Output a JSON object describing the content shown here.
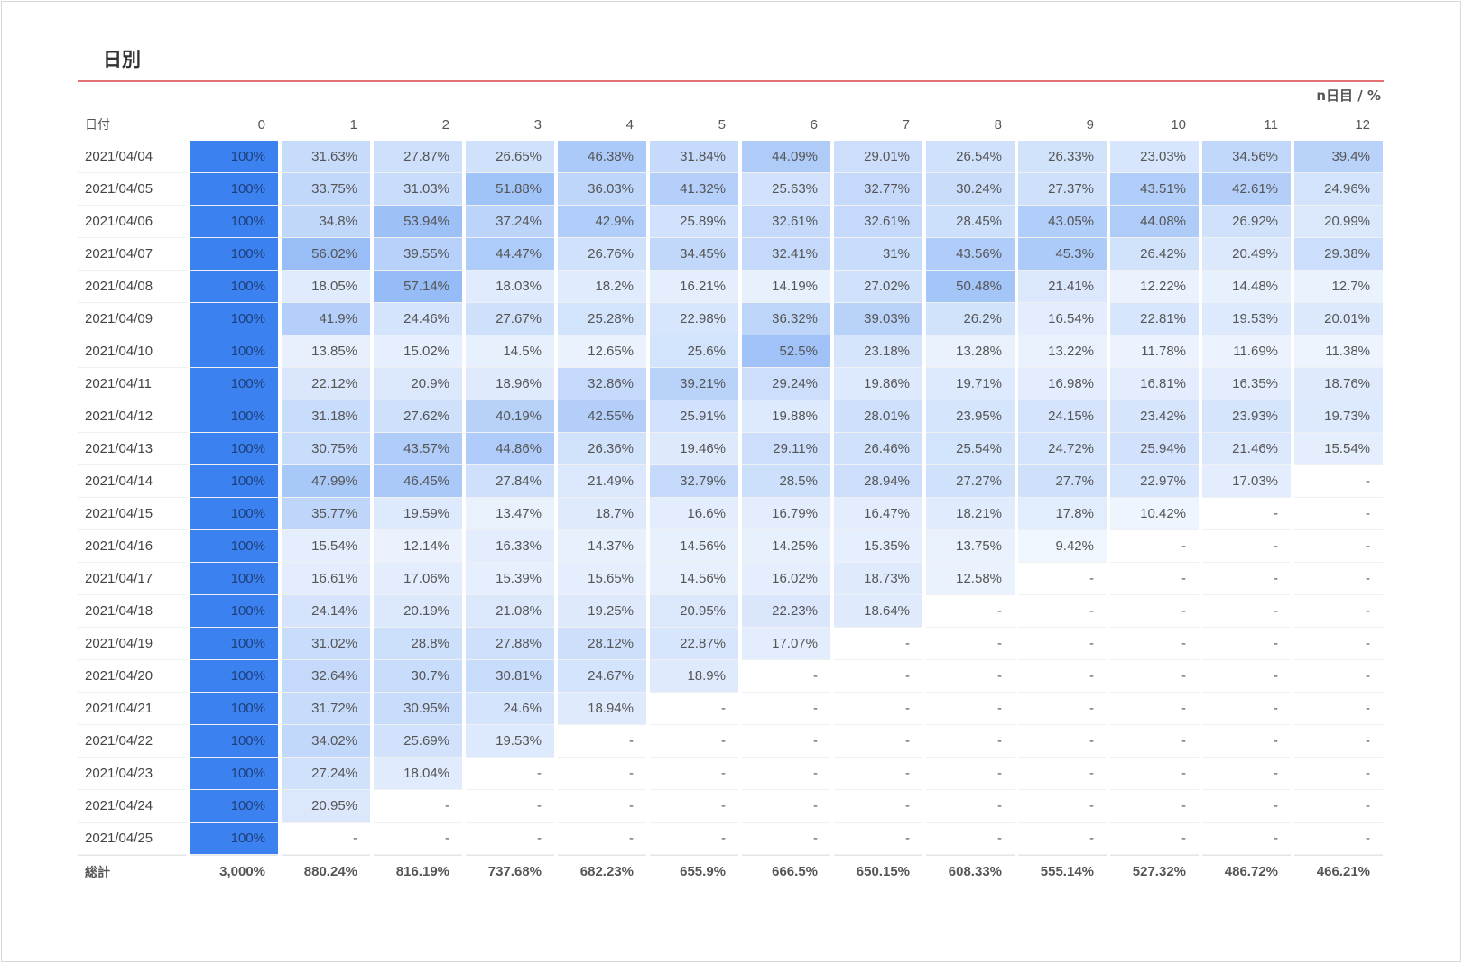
{
  "title": "日別",
  "unit_label": "n日目 / %",
  "colors": {
    "accent_rule": "#e57373",
    "day0_fill": "#3b82f0",
    "heat_base": "#3b82f0"
  },
  "columns": {
    "date_header": "日付",
    "days": [
      "0",
      "1",
      "2",
      "3",
      "4",
      "5",
      "6",
      "7",
      "8",
      "9",
      "10",
      "11",
      "12"
    ]
  },
  "rows": [
    {
      "date": "2021/04/04",
      "values": [
        "100%",
        "31.63%",
        "27.87%",
        "26.65%",
        "46.38%",
        "31.84%",
        "44.09%",
        "29.01%",
        "26.54%",
        "26.33%",
        "23.03%",
        "34.56%",
        "39.4%"
      ]
    },
    {
      "date": "2021/04/05",
      "values": [
        "100%",
        "33.75%",
        "31.03%",
        "51.88%",
        "36.03%",
        "41.32%",
        "25.63%",
        "32.77%",
        "30.24%",
        "27.37%",
        "43.51%",
        "42.61%",
        "24.96%"
      ]
    },
    {
      "date": "2021/04/06",
      "values": [
        "100%",
        "34.8%",
        "53.94%",
        "37.24%",
        "42.9%",
        "25.89%",
        "32.61%",
        "32.61%",
        "28.45%",
        "43.05%",
        "44.08%",
        "26.92%",
        "20.99%"
      ]
    },
    {
      "date": "2021/04/07",
      "values": [
        "100%",
        "56.02%",
        "39.55%",
        "44.47%",
        "26.76%",
        "34.45%",
        "32.41%",
        "31%",
        "43.56%",
        "45.3%",
        "26.42%",
        "20.49%",
        "29.38%"
      ]
    },
    {
      "date": "2021/04/08",
      "values": [
        "100%",
        "18.05%",
        "57.14%",
        "18.03%",
        "18.2%",
        "16.21%",
        "14.19%",
        "27.02%",
        "50.48%",
        "21.41%",
        "12.22%",
        "14.48%",
        "12.7%"
      ]
    },
    {
      "date": "2021/04/09",
      "values": [
        "100%",
        "41.9%",
        "24.46%",
        "27.67%",
        "25.28%",
        "22.98%",
        "36.32%",
        "39.03%",
        "26.2%",
        "16.54%",
        "22.81%",
        "19.53%",
        "20.01%"
      ]
    },
    {
      "date": "2021/04/10",
      "values": [
        "100%",
        "13.85%",
        "15.02%",
        "14.5%",
        "12.65%",
        "25.6%",
        "52.5%",
        "23.18%",
        "13.28%",
        "13.22%",
        "11.78%",
        "11.69%",
        "11.38%"
      ]
    },
    {
      "date": "2021/04/11",
      "values": [
        "100%",
        "22.12%",
        "20.9%",
        "18.96%",
        "32.86%",
        "39.21%",
        "29.24%",
        "19.86%",
        "19.71%",
        "16.98%",
        "16.81%",
        "16.35%",
        "18.76%"
      ]
    },
    {
      "date": "2021/04/12",
      "values": [
        "100%",
        "31.18%",
        "27.62%",
        "40.19%",
        "42.55%",
        "25.91%",
        "19.88%",
        "28.01%",
        "23.95%",
        "24.15%",
        "23.42%",
        "23.93%",
        "19.73%"
      ]
    },
    {
      "date": "2021/04/13",
      "values": [
        "100%",
        "30.75%",
        "43.57%",
        "44.86%",
        "26.36%",
        "19.46%",
        "29.11%",
        "26.46%",
        "25.54%",
        "24.72%",
        "25.94%",
        "21.46%",
        "15.54%"
      ]
    },
    {
      "date": "2021/04/14",
      "values": [
        "100%",
        "47.99%",
        "46.45%",
        "27.84%",
        "21.49%",
        "32.79%",
        "28.5%",
        "28.94%",
        "27.27%",
        "27.7%",
        "22.97%",
        "17.03%",
        "-"
      ]
    },
    {
      "date": "2021/04/15",
      "values": [
        "100%",
        "35.77%",
        "19.59%",
        "13.47%",
        "18.7%",
        "16.6%",
        "16.79%",
        "16.47%",
        "18.21%",
        "17.8%",
        "10.42%",
        "-",
        "-"
      ]
    },
    {
      "date": "2021/04/16",
      "values": [
        "100%",
        "15.54%",
        "12.14%",
        "16.33%",
        "14.37%",
        "14.56%",
        "14.25%",
        "15.35%",
        "13.75%",
        "9.42%",
        "-",
        "-",
        "-"
      ]
    },
    {
      "date": "2021/04/17",
      "values": [
        "100%",
        "16.61%",
        "17.06%",
        "15.39%",
        "15.65%",
        "14.56%",
        "16.02%",
        "18.73%",
        "12.58%",
        "-",
        "-",
        "-",
        "-"
      ]
    },
    {
      "date": "2021/04/18",
      "values": [
        "100%",
        "24.14%",
        "20.19%",
        "21.08%",
        "19.25%",
        "20.95%",
        "22.23%",
        "18.64%",
        "-",
        "-",
        "-",
        "-",
        "-"
      ]
    },
    {
      "date": "2021/04/19",
      "values": [
        "100%",
        "31.02%",
        "28.8%",
        "27.88%",
        "28.12%",
        "22.87%",
        "17.07%",
        "-",
        "-",
        "-",
        "-",
        "-",
        "-"
      ]
    },
    {
      "date": "2021/04/20",
      "values": [
        "100%",
        "32.64%",
        "30.7%",
        "30.81%",
        "24.67%",
        "18.9%",
        "-",
        "-",
        "-",
        "-",
        "-",
        "-",
        "-"
      ]
    },
    {
      "date": "2021/04/21",
      "values": [
        "100%",
        "31.72%",
        "30.95%",
        "24.6%",
        "18.94%",
        "-",
        "-",
        "-",
        "-",
        "-",
        "-",
        "-",
        "-"
      ]
    },
    {
      "date": "2021/04/22",
      "values": [
        "100%",
        "34.02%",
        "25.69%",
        "19.53%",
        "-",
        "-",
        "-",
        "-",
        "-",
        "-",
        "-",
        "-",
        "-"
      ]
    },
    {
      "date": "2021/04/23",
      "values": [
        "100%",
        "27.24%",
        "18.04%",
        "-",
        "-",
        "-",
        "-",
        "-",
        "-",
        "-",
        "-",
        "-",
        "-"
      ]
    },
    {
      "date": "2021/04/24",
      "values": [
        "100%",
        "20.95%",
        "-",
        "-",
        "-",
        "-",
        "-",
        "-",
        "-",
        "-",
        "-",
        "-",
        "-"
      ]
    },
    {
      "date": "2021/04/25",
      "values": [
        "100%",
        "-",
        "-",
        "-",
        "-",
        "-",
        "-",
        "-",
        "-",
        "-",
        "-",
        "-",
        "-"
      ]
    }
  ],
  "totals": {
    "label": "総計",
    "values": [
      "3,000%",
      "880.24%",
      "816.19%",
      "737.68%",
      "682.23%",
      "655.9%",
      "666.5%",
      "650.15%",
      "608.33%",
      "555.14%",
      "527.32%",
      "486.72%",
      "466.21%"
    ]
  }
}
